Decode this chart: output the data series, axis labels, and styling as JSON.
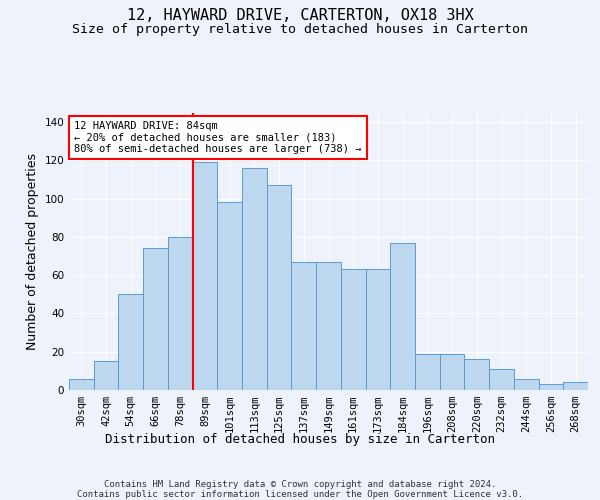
{
  "title": "12, HAYWARD DRIVE, CARTERTON, OX18 3HX",
  "subtitle": "Size of property relative to detached houses in Carterton",
  "xlabel": "Distribution of detached houses by size in Carterton",
  "ylabel": "Number of detached properties",
  "categories": [
    "30sqm",
    "42sqm",
    "54sqm",
    "66sqm",
    "78sqm",
    "89sqm",
    "101sqm",
    "113sqm",
    "125sqm",
    "137sqm",
    "149sqm",
    "161sqm",
    "173sqm",
    "184sqm",
    "196sqm",
    "208sqm",
    "220sqm",
    "232sqm",
    "244sqm",
    "256sqm",
    "268sqm"
  ],
  "values": [
    6,
    15,
    50,
    74,
    80,
    119,
    98,
    116,
    107,
    67,
    67,
    63,
    63,
    77,
    19,
    19,
    16,
    11,
    6,
    3,
    4
  ],
  "bar_color": "#bdd7ee",
  "bar_edge_color": "#5b9bd5",
  "vline_color": "red",
  "annotation_text": "12 HAYWARD DRIVE: 84sqm\n← 20% of detached houses are smaller (183)\n80% of semi-detached houses are larger (738) →",
  "annotation_box_color": "white",
  "annotation_box_edge": "red",
  "ylim": [
    0,
    145
  ],
  "yticks": [
    0,
    20,
    40,
    60,
    80,
    100,
    120,
    140
  ],
  "footnote": "Contains HM Land Registry data © Crown copyright and database right 2024.\nContains public sector information licensed under the Open Government Licence v3.0.",
  "title_fontsize": 11,
  "subtitle_fontsize": 9.5,
  "ylabel_fontsize": 9,
  "xlabel_fontsize": 9,
  "tick_fontsize": 7.5,
  "annotation_fontsize": 7.5,
  "footnote_fontsize": 6.5,
  "background_color": "#eef2fa"
}
